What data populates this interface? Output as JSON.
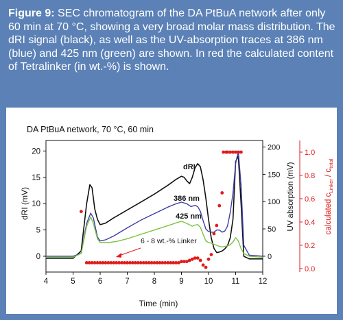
{
  "caption": {
    "lead": "Figure 9:",
    "text": " SEC chromatogram of the DA PtBuA network after only 60 min at 70 °C, showing a very broad molar mass distribution. The dRI signal (black), as well as the UV-absorption traces at 386 nm (blue) and 425 nm (green) are shown. In red the calculated content of Tetralinker (in wt.-%) is shown."
  },
  "colors": {
    "frame": "#5b81b6",
    "dri": "#111111",
    "uv386": "#3d3da6",
    "uv425": "#7cc242",
    "linker": "#e01b1b"
  },
  "chart_data": {
    "type": "line",
    "title": "DA PtBuA network, 70 °C, 60 min",
    "xlabel": "Time (min)",
    "xlim": [
      4,
      12
    ],
    "x_ticks": [
      "4",
      "5",
      "6",
      "7",
      "8",
      "9",
      "10",
      "11",
      "12"
    ],
    "y_left": {
      "label": "dRI (mV)",
      "lim": [
        -3,
        22
      ],
      "ticks": [
        "0",
        "5",
        "10",
        "15",
        "20"
      ]
    },
    "y_uv": {
      "label": "UV absorption (mV)",
      "lim": [
        -29,
        212
      ],
      "ticks": [
        "0",
        "50",
        "100",
        "150",
        "200"
      ]
    },
    "y_right": {
      "label_main": "calculated c",
      "label_sub1": "Linker",
      "label_sep": " / c",
      "label_sub2": "total",
      "lim": [
        -0.03,
        1.1
      ],
      "ticks": [
        "0.0",
        "0.2",
        "0.4",
        "0.6",
        "0.8",
        "1.0"
      ]
    },
    "annotations": {
      "dri": "dRI",
      "nm386": "386 nm",
      "nm425": "425 nm",
      "linker": "6 - 8 wt.-% Linker"
    },
    "series": [
      {
        "key": "dri",
        "axis": "left",
        "x": [
          4.0,
          5.0,
          5.3,
          5.5,
          5.62,
          5.7,
          5.8,
          5.9,
          6.0,
          6.2,
          6.5,
          7.0,
          7.5,
          8.0,
          8.5,
          8.8,
          9.0,
          9.1,
          9.2,
          9.3,
          9.4,
          9.5,
          9.6,
          9.7,
          9.8,
          9.9,
          10.0,
          10.1,
          10.2,
          10.3,
          10.4,
          10.5,
          10.6,
          10.7,
          10.8,
          10.9,
          11.0,
          11.1,
          11.2,
          11.3,
          11.5,
          12.0
        ],
        "values": [
          -0.4,
          -0.4,
          1.0,
          10.0,
          13.6,
          13.0,
          9.0,
          7.0,
          6.0,
          6.3,
          7.3,
          8.8,
          10.3,
          11.8,
          13.5,
          14.6,
          15.2,
          15.0,
          14.3,
          13.8,
          15.0,
          16.8,
          17.6,
          17.0,
          14.5,
          11.0,
          7.0,
          3.5,
          1.5,
          0.7,
          0.8,
          1.0,
          1.4,
          2.0,
          3.5,
          7.0,
          18.0,
          19.0,
          10.0,
          0.0,
          -0.5,
          -0.5
        ]
      },
      {
        "key": "uv386",
        "axis": "uv",
        "x": [
          4.0,
          5.0,
          5.3,
          5.5,
          5.65,
          5.75,
          5.9,
          6.0,
          6.2,
          6.5,
          7.0,
          7.5,
          8.0,
          8.5,
          8.8,
          9.0,
          9.2,
          9.35,
          9.5,
          9.6,
          9.7,
          9.8,
          9.9,
          10.0,
          10.1,
          10.2,
          10.3,
          10.4,
          10.5,
          10.6,
          10.7,
          10.8,
          10.9,
          11.0,
          11.1,
          11.2,
          11.3,
          11.5,
          12.0
        ],
        "values": [
          0.0,
          0.0,
          5.0,
          60.0,
          79.0,
          70.0,
          35.0,
          28.0,
          30.0,
          37.0,
          52.0,
          66.0,
          78.0,
          90.0,
          96.0,
          99.0,
          96.0,
          91.0,
          93.0,
          91.0,
          82.0,
          65.0,
          50.0,
          45.0,
          44.0,
          44.0,
          48.0,
          48.0,
          44.0,
          46.0,
          55.0,
          80.0,
          115.0,
          170.0,
          192.0,
          130.0,
          20.0,
          2.0,
          0.0
        ]
      },
      {
        "key": "uv425",
        "axis": "uv",
        "x": [
          4.0,
          5.0,
          5.3,
          5.5,
          5.65,
          5.75,
          5.9,
          6.0,
          6.3,
          6.6,
          7.0,
          7.5,
          8.0,
          8.5,
          8.8,
          9.0,
          9.2,
          9.4,
          9.5,
          9.6,
          9.7,
          9.8,
          9.9,
          10.0,
          10.1,
          10.2,
          10.3,
          10.4,
          10.5,
          10.6,
          10.7,
          10.8,
          10.9,
          11.0,
          11.1,
          11.2,
          11.3,
          11.5,
          12.0
        ],
        "values": [
          -2.0,
          -2.0,
          5.0,
          55.0,
          72.0,
          60.0,
          32.0,
          25.0,
          25.0,
          27.0,
          32.0,
          40.0,
          48.0,
          56.0,
          61.0,
          64.0,
          60.0,
          55.0,
          57.0,
          58.0,
          53.0,
          40.0,
          28.0,
          25.0,
          24.0,
          22.0,
          20.0,
          18.0,
          17.0,
          18.0,
          19.0,
          21.0,
          26.0,
          34.0,
          28.0,
          14.0,
          5.0,
          0.0,
          -2.0
        ]
      },
      {
        "key": "linker",
        "axis": "right",
        "style": "dots",
        "x": [
          5.3,
          5.5,
          5.6,
          5.7,
          5.8,
          5.9,
          6.0,
          6.1,
          6.2,
          6.3,
          6.4,
          6.5,
          6.6,
          6.7,
          6.8,
          6.9,
          7.0,
          7.1,
          7.2,
          7.3,
          7.4,
          7.5,
          7.6,
          7.7,
          7.8,
          7.9,
          8.0,
          8.1,
          8.2,
          8.3,
          8.4,
          8.5,
          8.6,
          8.7,
          8.8,
          8.9,
          9.0,
          9.1,
          9.2,
          9.3,
          9.4,
          9.5,
          9.6,
          9.7,
          9.8,
          9.9,
          10.0,
          10.1,
          10.2,
          10.3,
          10.4,
          10.5,
          10.55,
          10.65,
          10.7,
          10.8,
          10.9,
          11.0,
          11.1,
          11.2
        ],
        "values": [
          0.49,
          0.05,
          0.05,
          0.05,
          0.05,
          0.05,
          0.05,
          0.05,
          0.05,
          0.05,
          0.05,
          0.05,
          0.05,
          0.05,
          0.05,
          0.05,
          0.05,
          0.05,
          0.05,
          0.05,
          0.05,
          0.05,
          0.05,
          0.05,
          0.05,
          0.05,
          0.05,
          0.05,
          0.05,
          0.05,
          0.05,
          0.05,
          0.05,
          0.05,
          0.05,
          0.05,
          0.06,
          0.06,
          0.06,
          0.07,
          0.08,
          0.09,
          0.09,
          0.07,
          0.03,
          0.01,
          0.08,
          0.12,
          0.3,
          0.37,
          0.54,
          0.65,
          1.0,
          1.0,
          1.0,
          1.0,
          1.0,
          1.0,
          1.0,
          1.0
        ]
      }
    ]
  }
}
